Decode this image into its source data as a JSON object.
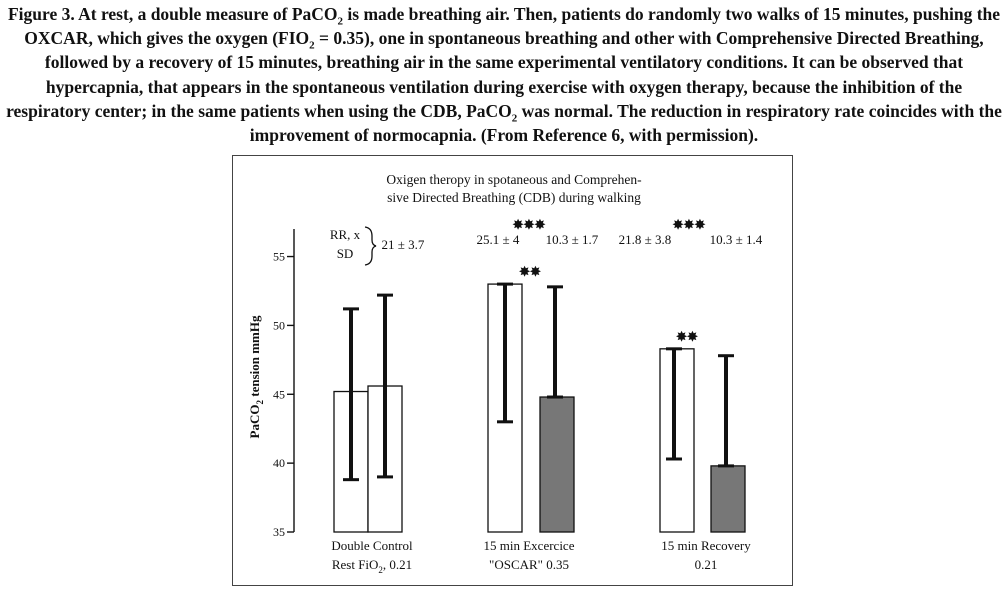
{
  "caption": {
    "label": "Figure 3.",
    "part1": " At rest, a double measure of PaCO",
    "sub1": "2",
    "part2": " is made breathing air. Then, patients do randomly two walks of 15 minutes, pushing the OXCAR, which gives the oxygen (FIO",
    "sub2": "2",
    "part3": " = 0.35), one in spontaneous breathing and other with Comprehensive Directed Breathing, followed by a recovery of 15 minutes, breathing air in the same experimental ventilatory conditions. It can be observed that hypercapnia, that appears in the spontaneous ventilation during exercise with oxygen therapy, because the inhibition of the respiratory center; in the same patients when using the CDB, PaCO",
    "sub3": "2",
    "part4": " was normal. The reduction in respiratory rate coincides with the improvement of normocapnia. (From Reference 6, with permission)."
  },
  "chart_data": {
    "type": "bar",
    "title_line1": "Oxigen theropy in spotaneous and Comprehen-",
    "title_line2": "sive Directed Breathing (CDB) during walking",
    "ylabel_main": "PaCO",
    "ylabel_sub": "2",
    "ylabel_rest": " tension mmHg",
    "ylim": [
      35,
      57
    ],
    "yticks": [
      "35",
      "40",
      "45",
      "50",
      "55"
    ],
    "grid": false,
    "legend": "none",
    "rr_label_line1": "RR, x",
    "rr_label_line2": "SD",
    "rr_rest_value": "21 ± 3.7",
    "groups": [
      {
        "label_line1": "Double Control",
        "label_line2_main": "Rest FiO",
        "label_line2_sub": "2",
        "label_line2_rest": ", 0.21",
        "bars": [
          {
            "value": 45.2,
            "err_low": 38.8,
            "err_high": 51.2,
            "fill": "#ffffff"
          },
          {
            "value": 45.6,
            "err_low": 39.0,
            "err_high": 52.2,
            "fill": "#ffffff"
          }
        ]
      },
      {
        "label_line1": "15 min Excercice",
        "label_line2_main": "\"OSCAR\" 0.35",
        "label_line2_sub": "",
        "label_line2_rest": "",
        "rr_left": "25.1 ± 4",
        "rr_right": "10.3 ± 1.7",
        "rr_stars": "✸✸✸",
        "bar_stars": "✸✸",
        "bars": [
          {
            "value": 53.0,
            "err_low": 43.0,
            "err_high": 53.0,
            "fill": "#ffffff"
          },
          {
            "value": 44.8,
            "err_low": 44.8,
            "err_high": 52.8,
            "fill": "#777777"
          }
        ]
      },
      {
        "label_line1": "15 min Recovery",
        "label_line2_main": "0.21",
        "label_line2_sub": "",
        "label_line2_rest": "",
        "rr_left": "21.8 ± 3.8",
        "rr_right": "10.3 ± 1.4",
        "rr_stars": "✸✸✸",
        "bar_stars": "✸✸",
        "bars": [
          {
            "value": 48.3,
            "err_low": 40.3,
            "err_high": 48.3,
            "fill": "#ffffff"
          },
          {
            "value": 39.8,
            "err_low": 39.8,
            "err_high": 47.8,
            "fill": "#777777"
          }
        ]
      }
    ],
    "colors": {
      "open_bar": "#ffffff",
      "shaded_bar": "#777777",
      "line": "#111111"
    }
  }
}
